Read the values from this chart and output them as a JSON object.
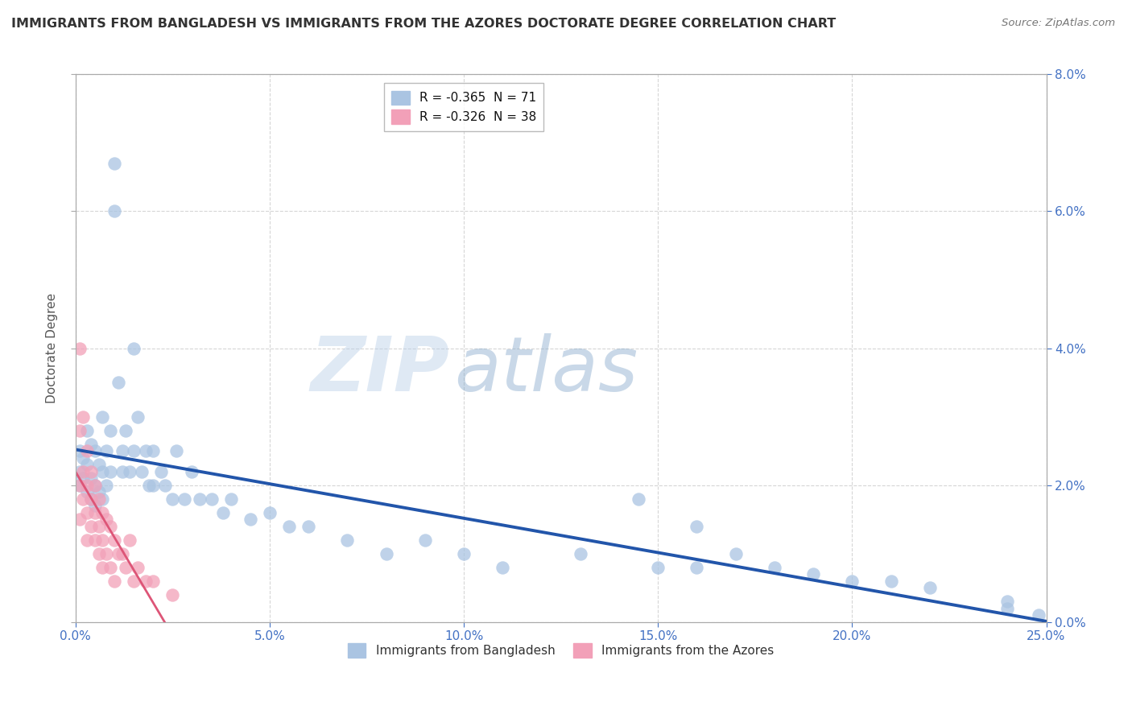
{
  "title": "IMMIGRANTS FROM BANGLADESH VS IMMIGRANTS FROM THE AZORES DOCTORATE DEGREE CORRELATION CHART",
  "source": "Source: ZipAtlas.com",
  "ylabel": "Doctorate Degree",
  "legend_label1": "R = -0.365  N = 71",
  "legend_label2": "R = -0.326  N = 38",
  "legend_item1": "Immigrants from Bangladesh",
  "legend_item2": "Immigrants from the Azores",
  "R1": -0.365,
  "N1": 71,
  "R2": -0.326,
  "N2": 38,
  "color_blue": "#aac4e2",
  "color_pink": "#f2a0b8",
  "color_blue_line": "#2255aa",
  "color_pink_line": "#dd5577",
  "watermark_zip": "ZIP",
  "watermark_atlas": "atlas",
  "bg_color": "#ffffff",
  "grid_color": "#cccccc",
  "xlim": [
    0.0,
    0.25
  ],
  "ylim": [
    0.0,
    0.08
  ],
  "xticks": [
    0.0,
    0.05,
    0.1,
    0.15,
    0.2,
    0.25
  ],
  "yticks": [
    0.0,
    0.02,
    0.04,
    0.06,
    0.08
  ],
  "blue_x": [
    0.001,
    0.001,
    0.001,
    0.002,
    0.002,
    0.003,
    0.003,
    0.003,
    0.004,
    0.004,
    0.004,
    0.005,
    0.005,
    0.005,
    0.006,
    0.006,
    0.007,
    0.007,
    0.007,
    0.008,
    0.008,
    0.009,
    0.009,
    0.01,
    0.01,
    0.011,
    0.012,
    0.012,
    0.013,
    0.014,
    0.015,
    0.015,
    0.016,
    0.017,
    0.018,
    0.019,
    0.02,
    0.02,
    0.022,
    0.023,
    0.025,
    0.026,
    0.028,
    0.03,
    0.032,
    0.035,
    0.038,
    0.04,
    0.045,
    0.05,
    0.055,
    0.06,
    0.07,
    0.08,
    0.09,
    0.1,
    0.11,
    0.13,
    0.15,
    0.16,
    0.18,
    0.2,
    0.21,
    0.22,
    0.16,
    0.145,
    0.24,
    0.17,
    0.19,
    0.24,
    0.248
  ],
  "blue_y": [
    0.025,
    0.022,
    0.02,
    0.024,
    0.021,
    0.028,
    0.023,
    0.019,
    0.026,
    0.021,
    0.018,
    0.025,
    0.02,
    0.017,
    0.023,
    0.019,
    0.03,
    0.022,
    0.018,
    0.025,
    0.02,
    0.028,
    0.022,
    0.067,
    0.06,
    0.035,
    0.025,
    0.022,
    0.028,
    0.022,
    0.04,
    0.025,
    0.03,
    0.022,
    0.025,
    0.02,
    0.025,
    0.02,
    0.022,
    0.02,
    0.018,
    0.025,
    0.018,
    0.022,
    0.018,
    0.018,
    0.016,
    0.018,
    0.015,
    0.016,
    0.014,
    0.014,
    0.012,
    0.01,
    0.012,
    0.01,
    0.008,
    0.01,
    0.008,
    0.008,
    0.008,
    0.006,
    0.006,
    0.005,
    0.014,
    0.018,
    0.003,
    0.01,
    0.007,
    0.002,
    0.001
  ],
  "pink_x": [
    0.001,
    0.001,
    0.001,
    0.001,
    0.002,
    0.002,
    0.002,
    0.003,
    0.003,
    0.003,
    0.003,
    0.004,
    0.004,
    0.004,
    0.005,
    0.005,
    0.005,
    0.006,
    0.006,
    0.006,
    0.007,
    0.007,
    0.007,
    0.008,
    0.008,
    0.009,
    0.009,
    0.01,
    0.01,
    0.011,
    0.012,
    0.013,
    0.014,
    0.015,
    0.016,
    0.018,
    0.02,
    0.025
  ],
  "pink_y": [
    0.04,
    0.028,
    0.02,
    0.015,
    0.03,
    0.022,
    0.018,
    0.025,
    0.02,
    0.016,
    0.012,
    0.022,
    0.018,
    0.014,
    0.02,
    0.016,
    0.012,
    0.018,
    0.014,
    0.01,
    0.016,
    0.012,
    0.008,
    0.015,
    0.01,
    0.014,
    0.008,
    0.012,
    0.006,
    0.01,
    0.01,
    0.008,
    0.012,
    0.006,
    0.008,
    0.006,
    0.006,
    0.004
  ]
}
